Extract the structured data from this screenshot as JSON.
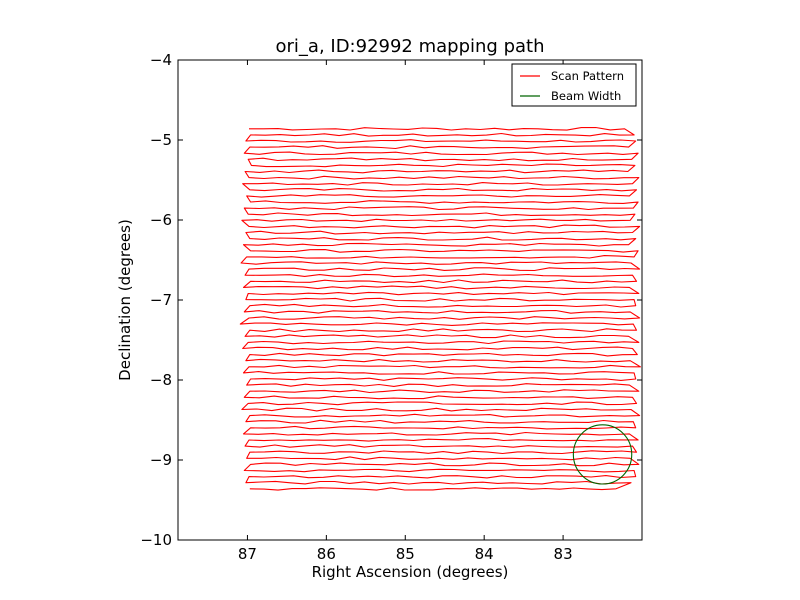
{
  "chart_data": {
    "type": "line",
    "title": "ori_a, ID:92992 mapping path",
    "xlabel": "Right Ascension (degrees)",
    "ylabel": "Declination (degrees)",
    "xlim": [
      87.88,
      82.0
    ],
    "ylim": [
      -10,
      -4
    ],
    "xticks": [
      87,
      86,
      85,
      84,
      83
    ],
    "yticks": [
      -4,
      -5,
      -6,
      -7,
      -8,
      -9,
      -10
    ],
    "xtick_labels": [
      "87",
      "86",
      "85",
      "84",
      "83"
    ],
    "ytick_labels": [
      "−4",
      "−5",
      "−6",
      "−7",
      "−8",
      "−9",
      "−10"
    ],
    "grid": false,
    "legend_position": "top-right",
    "series": [
      {
        "name": "Scan Pattern",
        "color": "#ff0000",
        "scan": {
          "dec_top": -4.86,
          "dec_bottom": -9.36,
          "rows": 60,
          "ra_left": [
            86.98,
            86.96,
            87.02,
            86.97,
            87.04,
            86.99,
            86.95,
            87.03,
            86.98,
            87.06,
            86.97,
            87.01,
            86.96,
            87.04,
            86.99,
            87.07,
            86.98,
            87.02,
            86.97,
            87.05,
            86.96,
            87.01,
            87.08,
            86.98,
            87.03,
            86.96,
            87.05,
            86.99,
            87.02,
            86.97,
            87.04,
            86.98,
            87.09,
            86.97,
            87.03,
            86.99,
            87.06,
            86.97,
            87.02,
            86.98,
            87.05,
            86.96,
            87.01,
            86.97,
            87.04,
            86.99,
            87.07,
            86.97,
            87.02,
            86.96,
            87.05,
            86.98,
            87.03,
            86.97,
            87.01,
            86.96,
            87.04,
            86.98,
            87.02,
            86.97
          ],
          "ra_right": [
            82.22,
            82.1,
            82.08,
            82.17,
            82.05,
            82.13,
            82.09,
            82.18,
            82.04,
            82.12,
            82.07,
            82.16,
            82.05,
            82.11,
            82.09,
            82.15,
            82.03,
            82.12,
            82.08,
            82.17,
            82.05,
            82.1,
            82.14,
            82.03,
            82.12,
            82.07,
            82.16,
            82.04,
            82.1,
            82.08,
            82.15,
            82.03,
            82.11,
            82.07,
            82.17,
            82.04,
            82.12,
            82.06,
            82.15,
            82.02,
            82.1,
            82.08,
            82.16,
            82.04,
            82.12,
            82.07,
            82.14,
            82.03,
            82.11,
            82.08,
            82.16,
            82.05,
            82.12,
            82.07,
            82.15,
            82.04,
            82.1,
            82.08,
            82.14,
            82.33
          ]
        }
      },
      {
        "name": "Beam Width",
        "color": "#006400",
        "circle": {
          "center_ra": 82.5,
          "center_dec": -8.93,
          "radius_deg": 0.37
        }
      }
    ]
  }
}
